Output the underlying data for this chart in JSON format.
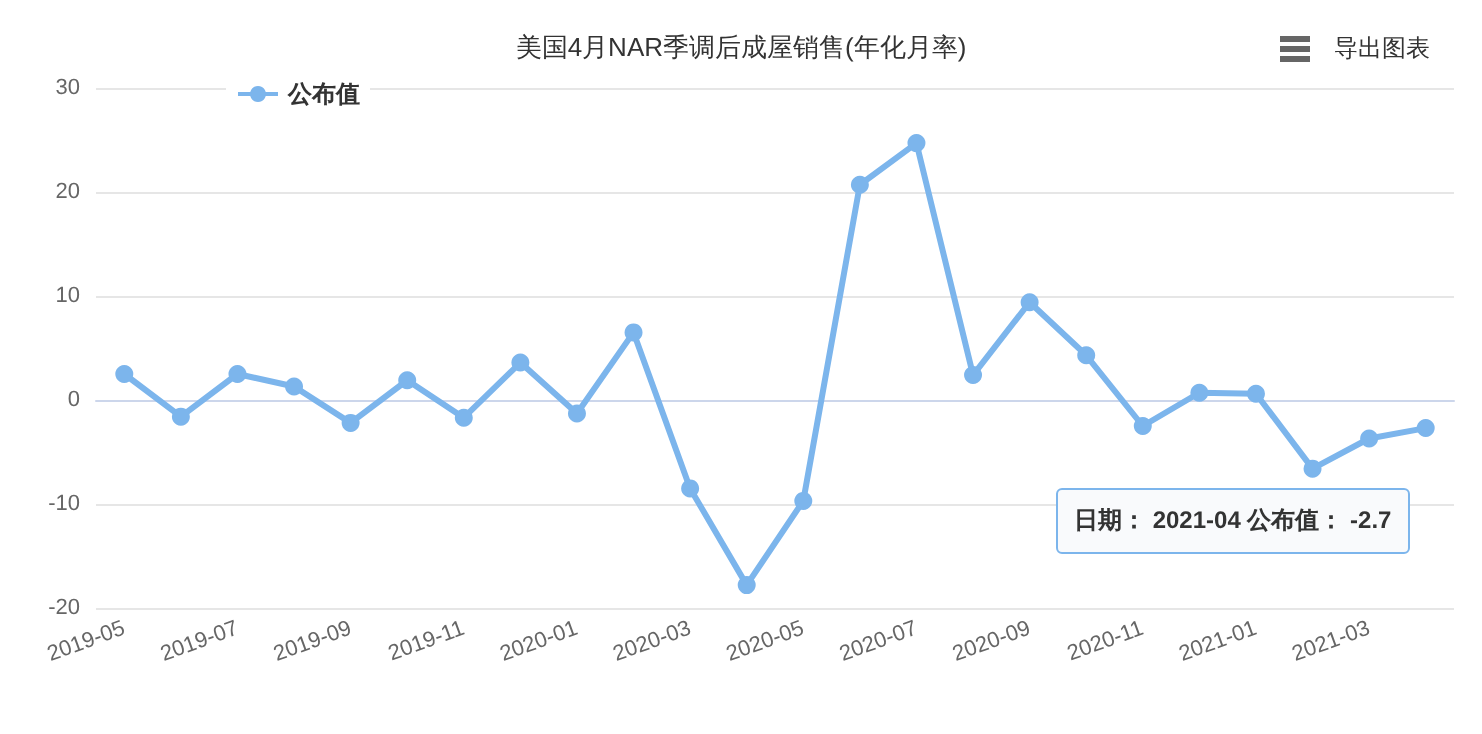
{
  "chart_data": {
    "type": "line",
    "title": "美国4月NAR季调后成屋销售(年化月率)",
    "categories": [
      "2019-05",
      null,
      "2019-07",
      null,
      "2019-09",
      null,
      "2019-11",
      null,
      "2020-01",
      null,
      "2020-03",
      null,
      "2020-05",
      null,
      "2020-07",
      null,
      "2020-09",
      null,
      "2020-11",
      null,
      "2021-01",
      null,
      "2021-03",
      null
    ],
    "series": [
      {
        "name": "公布值",
        "color": "#7cb5ec",
        "values": [
          2.5,
          -1.6,
          2.5,
          1.3,
          -2.2,
          1.9,
          -1.7,
          3.6,
          -1.3,
          6.5,
          -8.5,
          -17.8,
          -9.7,
          20.7,
          24.7,
          2.4,
          9.4,
          4.3,
          -2.5,
          0.7,
          0.6,
          -6.6,
          -3.7,
          -2.7
        ]
      }
    ],
    "ylim": [
      -20,
      30
    ],
    "yticks": [
      -20,
      -10,
      0,
      10,
      20,
      30
    ],
    "grid": "y",
    "legend": "top left",
    "marker": "circle",
    "line_style": "solid",
    "annotations": [
      "导出图表",
      "日期： 2021-04 公布值： -2.7"
    ]
  }
}
